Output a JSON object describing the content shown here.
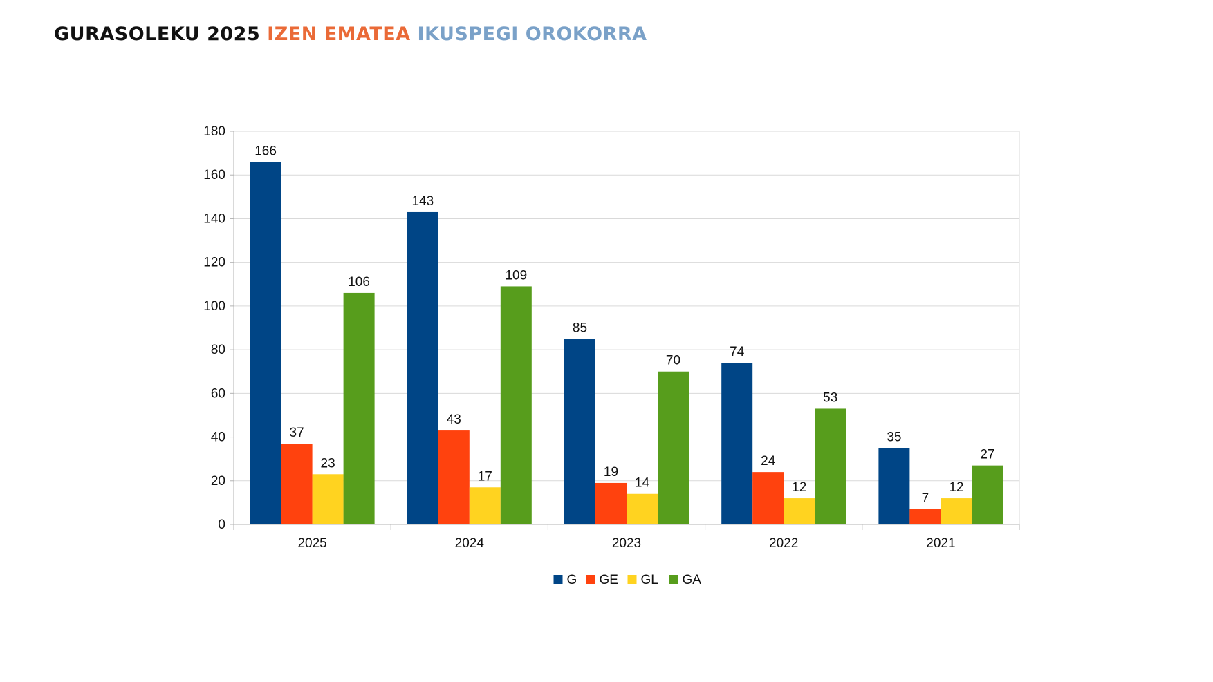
{
  "title": {
    "part1": "GURASOLEKU 2025",
    "part2": "IZEN EMATEA",
    "part3": "IKUSPEGI OROKORRA",
    "colors": {
      "part1": "#111111",
      "part2": "#ea6a37",
      "part3": "#7aa1c8"
    }
  },
  "chart_data": {
    "type": "bar",
    "title": "",
    "xlabel": "",
    "ylabel": "",
    "categories": [
      "2025",
      "2024",
      "2023",
      "2022",
      "2021"
    ],
    "series": [
      {
        "name": "G",
        "color": "#004586",
        "values": [
          166,
          143,
          85,
          74,
          35
        ]
      },
      {
        "name": "GE",
        "color": "#ff420e",
        "values": [
          37,
          43,
          19,
          24,
          7
        ]
      },
      {
        "name": "GL",
        "color": "#ffd320",
        "values": [
          23,
          17,
          14,
          12,
          12
        ]
      },
      {
        "name": "GA",
        "color": "#579d1c",
        "values": [
          106,
          109,
          70,
          53,
          27
        ]
      }
    ],
    "ylim": [
      0,
      180
    ],
    "yticks": [
      0,
      20,
      40,
      60,
      80,
      100,
      120,
      140,
      160,
      180
    ],
    "grid": true,
    "data_labels": true,
    "legend_position": "bottom"
  }
}
